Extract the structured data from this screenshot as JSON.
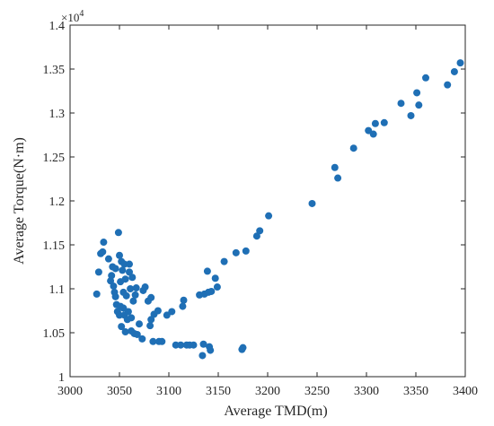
{
  "chart_data": {
    "type": "scatter",
    "title": "",
    "xlabel": "Average TMD(m)",
    "ylabel": "Average Torque(N·m)",
    "y_exponent_label": "×10^4",
    "y_exponent_base": "×10",
    "y_exponent_power": "4",
    "xlim": [
      3000,
      3400
    ],
    "ylim": [
      1.0,
      1.4
    ],
    "grid": false,
    "marker_color": "#1f6fb5",
    "xticks": [
      3000,
      3050,
      3100,
      3150,
      3200,
      3250,
      3300,
      3350,
      3400
    ],
    "xtick_labels": [
      "3000",
      "3050",
      "3100",
      "3150",
      "3200",
      "3250",
      "3300",
      "3350",
      "3400"
    ],
    "yticks": [
      1.0,
      1.05,
      1.1,
      1.15,
      1.2,
      1.25,
      1.3,
      1.35,
      1.4
    ],
    "ytick_labels": [
      "1",
      "1.05",
      "1.1",
      "1.15",
      "1.2",
      "1.25",
      "1.3",
      "1.35",
      "1.4"
    ],
    "points": [
      [
        3027,
        1.094
      ],
      [
        3029,
        1.119
      ],
      [
        3031,
        1.14
      ],
      [
        3033,
        1.142
      ],
      [
        3034,
        1.153
      ],
      [
        3039,
        1.134
      ],
      [
        3041,
        1.109
      ],
      [
        3042,
        1.115
      ],
      [
        3043,
        1.125
      ],
      [
        3044,
        1.103
      ],
      [
        3045,
        1.096
      ],
      [
        3046,
        1.091
      ],
      [
        3046,
        1.123
      ],
      [
        3047,
        1.082
      ],
      [
        3048,
        1.074
      ],
      [
        3049,
        1.164
      ],
      [
        3050,
        1.07
      ],
      [
        3050,
        1.138
      ],
      [
        3051,
        1.08
      ],
      [
        3051,
        1.108
      ],
      [
        3052,
        1.057
      ],
      [
        3052,
        1.131
      ],
      [
        3053,
        1.121
      ],
      [
        3054,
        1.096
      ],
      [
        3054,
        1.078
      ],
      [
        3055,
        1.07
      ],
      [
        3055,
        1.128
      ],
      [
        3056,
        1.111
      ],
      [
        3056,
        1.051
      ],
      [
        3057,
        1.092
      ],
      [
        3058,
        1.065
      ],
      [
        3059,
        1.074
      ],
      [
        3060,
        1.128
      ],
      [
        3060,
        1.119
      ],
      [
        3061,
        1.1
      ],
      [
        3062,
        1.052
      ],
      [
        3062,
        1.067
      ],
      [
        3063,
        1.113
      ],
      [
        3064,
        1.086
      ],
      [
        3065,
        1.049
      ],
      [
        3066,
        1.093
      ],
      [
        3067,
        1.101
      ],
      [
        3068,
        1.048
      ],
      [
        3070,
        1.06
      ],
      [
        3073,
        1.043
      ],
      [
        3074,
        1.098
      ],
      [
        3076,
        1.102
      ],
      [
        3079,
        1.086
      ],
      [
        3081,
        1.058
      ],
      [
        3082,
        1.065
      ],
      [
        3082,
        1.09
      ],
      [
        3084,
        1.04
      ],
      [
        3085,
        1.071
      ],
      [
        3089,
        1.075
      ],
      [
        3090,
        1.04
      ],
      [
        3093,
        1.04
      ],
      [
        3098,
        1.07
      ],
      [
        3103,
        1.074
      ],
      [
        3107,
        1.036
      ],
      [
        3112,
        1.036
      ],
      [
        3114,
        1.08
      ],
      [
        3115,
        1.087
      ],
      [
        3118,
        1.036
      ],
      [
        3121,
        1.036
      ],
      [
        3125,
        1.036
      ],
      [
        3131,
        1.093
      ],
      [
        3134,
        1.024
      ],
      [
        3135,
        1.037
      ],
      [
        3136,
        1.094
      ],
      [
        3139,
        1.12
      ],
      [
        3140,
        1.096
      ],
      [
        3141,
        1.034
      ],
      [
        3142,
        1.03
      ],
      [
        3143,
        1.097
      ],
      [
        3147,
        1.112
      ],
      [
        3149,
        1.102
      ],
      [
        3156,
        1.131
      ],
      [
        3168,
        1.141
      ],
      [
        3174,
        1.031
      ],
      [
        3175,
        1.033
      ],
      [
        3178,
        1.143
      ],
      [
        3189,
        1.16
      ],
      [
        3192,
        1.166
      ],
      [
        3201,
        1.183
      ],
      [
        3245,
        1.197
      ],
      [
        3268,
        1.238
      ],
      [
        3271,
        1.226
      ],
      [
        3287,
        1.26
      ],
      [
        3302,
        1.28
      ],
      [
        3307,
        1.276
      ],
      [
        3309,
        1.288
      ],
      [
        3318,
        1.289
      ],
      [
        3335,
        1.311
      ],
      [
        3345,
        1.297
      ],
      [
        3351,
        1.323
      ],
      [
        3353,
        1.309
      ],
      [
        3360,
        1.34
      ],
      [
        3382,
        1.332
      ],
      [
        3389,
        1.347
      ],
      [
        3395,
        1.357
      ]
    ]
  }
}
